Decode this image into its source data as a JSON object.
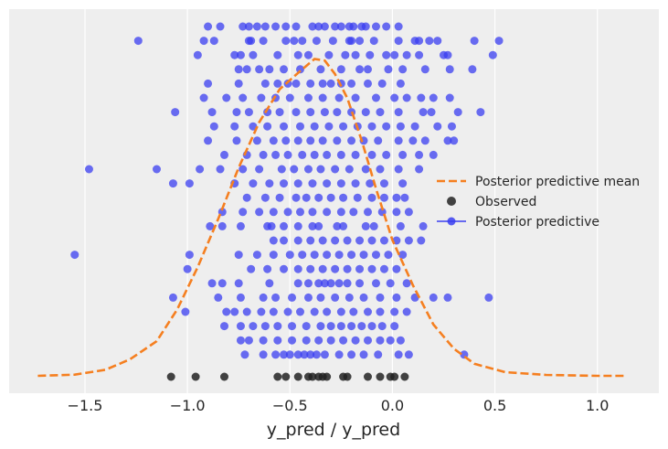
{
  "chart_data": {
    "type": "scatter",
    "xlabel": "y_pred / y_pred",
    "ylabel": "",
    "xlim": [
      -1.87,
      1.3
    ],
    "x_ticks": [
      -1.5,
      -1.0,
      -0.5,
      0.0,
      0.5,
      1.0
    ],
    "x_tick_labels": [
      "−1.5",
      "−1.0",
      "−0.5",
      "0.0",
      "0.5",
      "1.0"
    ],
    "grid": true,
    "legend_position": "right",
    "legend": [
      "Posterior predictive mean",
      "Observed",
      "Posterior predictive"
    ],
    "colors": {
      "background": "#eeeeee",
      "grid": "#ffffff",
      "mean_curve": "#f57f20",
      "observed": "#222222",
      "predictive": "#3a3ef0"
    },
    "mean_curve": {
      "x": [
        -1.73,
        -1.55,
        -1.4,
        -1.28,
        -1.15,
        -1.05,
        -0.95,
        -0.85,
        -0.75,
        -0.65,
        -0.55,
        -0.45,
        -0.38,
        -0.33,
        -0.28,
        -0.22,
        -0.15,
        -0.08,
        0.0,
        0.1,
        0.2,
        0.3,
        0.4,
        0.55,
        0.75,
        1.0,
        1.13
      ],
      "y": [
        0.0,
        0.004,
        0.02,
        0.055,
        0.115,
        0.22,
        0.36,
        0.52,
        0.69,
        0.84,
        0.95,
        1.01,
        1.05,
        1.045,
        1.0,
        0.92,
        0.78,
        0.62,
        0.45,
        0.3,
        0.17,
        0.09,
        0.04,
        0.012,
        0.003,
        0.0,
        0.0
      ]
    },
    "observed": [
      -1.08,
      -0.96,
      -0.82,
      -0.56,
      -0.52,
      -0.46,
      -0.41,
      -0.39,
      -0.36,
      -0.34,
      -0.32,
      -0.24,
      -0.22,
      -0.12,
      -0.06,
      -0.01,
      0.01,
      0.06
    ],
    "predictive_rows": [
      [
        -0.9,
        -0.84,
        -0.73,
        -0.7,
        -0.66,
        -0.62,
        -0.57,
        -0.52,
        -0.47,
        -0.39,
        -0.36,
        -0.33,
        -0.28,
        -0.25,
        -0.21,
        -0.19,
        -0.15,
        -0.13,
        -0.08,
        -0.03,
        0.03
      ],
      [
        -1.24,
        -0.92,
        -0.87,
        -0.7,
        -0.69,
        -0.63,
        -0.52,
        -0.48,
        -0.44,
        -0.37,
        -0.29,
        -0.21,
        -0.2,
        -0.16,
        -0.09,
        0.03,
        0.11,
        0.13,
        0.18,
        0.22,
        0.4,
        0.52
      ],
      [
        -0.95,
        -0.77,
        -0.74,
        -0.68,
        -0.56,
        -0.46,
        -0.41,
        -0.31,
        -0.23,
        -0.18,
        -0.11,
        -0.03,
        0.01,
        0.07,
        0.13,
        0.25,
        0.27,
        0.49
      ],
      [
        -0.75,
        -0.71,
        -0.65,
        -0.6,
        -0.53,
        -0.45,
        -0.35,
        -0.25,
        -0.16,
        -0.12,
        -0.02,
        0.05,
        0.16,
        0.28,
        0.39
      ],
      [
        -0.9,
        -0.75,
        -0.62,
        -0.56,
        -0.51,
        -0.47,
        -0.4,
        -0.34,
        -0.3,
        -0.25,
        -0.2,
        -0.12,
        -0.05,
        0.04
      ],
      [
        -0.92,
        -0.81,
        -0.73,
        -0.64,
        -0.57,
        -0.5,
        -0.41,
        -0.34,
        -0.26,
        -0.18,
        -0.08,
        0.01,
        0.07,
        0.14,
        0.2,
        0.28
      ],
      [
        -1.06,
        -0.88,
        -0.76,
        -0.7,
        -0.61,
        -0.55,
        -0.47,
        -0.4,
        -0.33,
        -0.27,
        -0.2,
        -0.13,
        -0.06,
        0.03,
        0.15,
        0.19,
        0.32,
        0.43
      ],
      [
        -0.87,
        -0.77,
        -0.68,
        -0.61,
        -0.53,
        -0.45,
        -0.38,
        -0.31,
        -0.24,
        -0.17,
        -0.1,
        -0.03,
        0.04,
        0.11,
        0.22,
        0.29
      ],
      [
        -0.9,
        -0.76,
        -0.66,
        -0.58,
        -0.52,
        -0.46,
        -0.4,
        -0.34,
        -0.27,
        -0.2,
        -0.14,
        -0.07,
        0.03,
        0.1,
        0.16,
        0.27,
        0.3
      ],
      [
        -0.82,
        -0.71,
        -0.63,
        -0.57,
        -0.51,
        -0.44,
        -0.38,
        -0.32,
        -0.25,
        -0.18,
        -0.1,
        -0.03,
        0.05,
        0.13,
        0.2
      ],
      [
        -1.48,
        -1.15,
        -0.94,
        -0.84,
        -0.73,
        -0.65,
        -0.54,
        -0.48,
        -0.41,
        -0.35,
        -0.28,
        -0.21,
        -0.13,
        -0.06,
        0.03,
        0.13
      ],
      [
        -1.07,
        -0.99,
        -0.77,
        -0.68,
        -0.6,
        -0.53,
        -0.46,
        -0.39,
        -0.32,
        -0.25,
        -0.18,
        -0.11,
        -0.04,
        0.05
      ],
      [
        -0.71,
        -0.62,
        -0.55,
        -0.47,
        -0.42,
        -0.36,
        -0.3,
        -0.24,
        -0.17,
        -0.1,
        -0.04,
        0.02,
        0.06
      ],
      [
        -0.83,
        -0.73,
        -0.65,
        -0.58,
        -0.51,
        -0.45,
        -0.39,
        -0.32,
        -0.25,
        -0.19,
        -0.12,
        -0.05,
        0.02,
        0.08
      ],
      [
        -0.89,
        -0.83,
        -0.74,
        -0.61,
        -0.59,
        -0.53,
        -0.46,
        -0.39,
        -0.36,
        -0.27,
        -0.24,
        -0.13,
        -0.09,
        0.04,
        0.15
      ],
      [
        -0.58,
        -0.53,
        -0.46,
        -0.4,
        -0.34,
        -0.28,
        -0.22,
        -0.16,
        -0.1,
        -0.04,
        0.02,
        0.08,
        0.14
      ],
      [
        -1.55,
        -0.99,
        -0.75,
        -0.66,
        -0.58,
        -0.5,
        -0.44,
        -0.38,
        -0.32,
        -0.26,
        -0.2,
        -0.14,
        -0.08,
        -0.02,
        0.05
      ],
      [
        -1.0,
        -0.69,
        -0.61,
        -0.53,
        -0.46,
        -0.4,
        -0.34,
        -0.28,
        -0.22,
        -0.16,
        -0.1,
        -0.04,
        0.02
      ],
      [
        -0.88,
        -0.83,
        -0.75,
        -0.6,
        -0.46,
        -0.41,
        -0.36,
        -0.33,
        -0.3,
        -0.26,
        -0.22,
        -0.16,
        -0.08,
        -0.01,
        0.07
      ],
      [
        -1.07,
        -0.85,
        -0.74,
        -0.63,
        -0.57,
        -0.49,
        -0.41,
        -0.35,
        -0.28,
        -0.21,
        -0.14,
        -0.06,
        0.02,
        0.11,
        0.2,
        0.27,
        0.47
      ],
      [
        -1.01,
        -0.81,
        -0.77,
        -0.71,
        -0.64,
        -0.58,
        -0.51,
        -0.45,
        -0.38,
        -0.32,
        -0.25,
        -0.19,
        -0.12,
        -0.06,
        0.01,
        0.07
      ],
      [
        -0.82,
        -0.74,
        -0.68,
        -0.62,
        -0.56,
        -0.49,
        -0.42,
        -0.35,
        -0.3,
        -0.25,
        -0.2,
        -0.15,
        -0.1,
        -0.05,
        0.01
      ],
      [
        -0.74,
        -0.7,
        -0.63,
        -0.56,
        -0.49,
        -0.42,
        -0.36,
        -0.3,
        -0.24,
        -0.18,
        -0.12,
        -0.06,
        -0.01,
        0.04
      ],
      [
        -0.72,
        -0.63,
        -0.57,
        -0.53,
        -0.5,
        -0.46,
        -0.43,
        -0.4,
        -0.37,
        -0.33,
        -0.26,
        -0.2,
        -0.14,
        -0.07,
        0.03,
        0.08,
        0.35
      ]
    ]
  }
}
